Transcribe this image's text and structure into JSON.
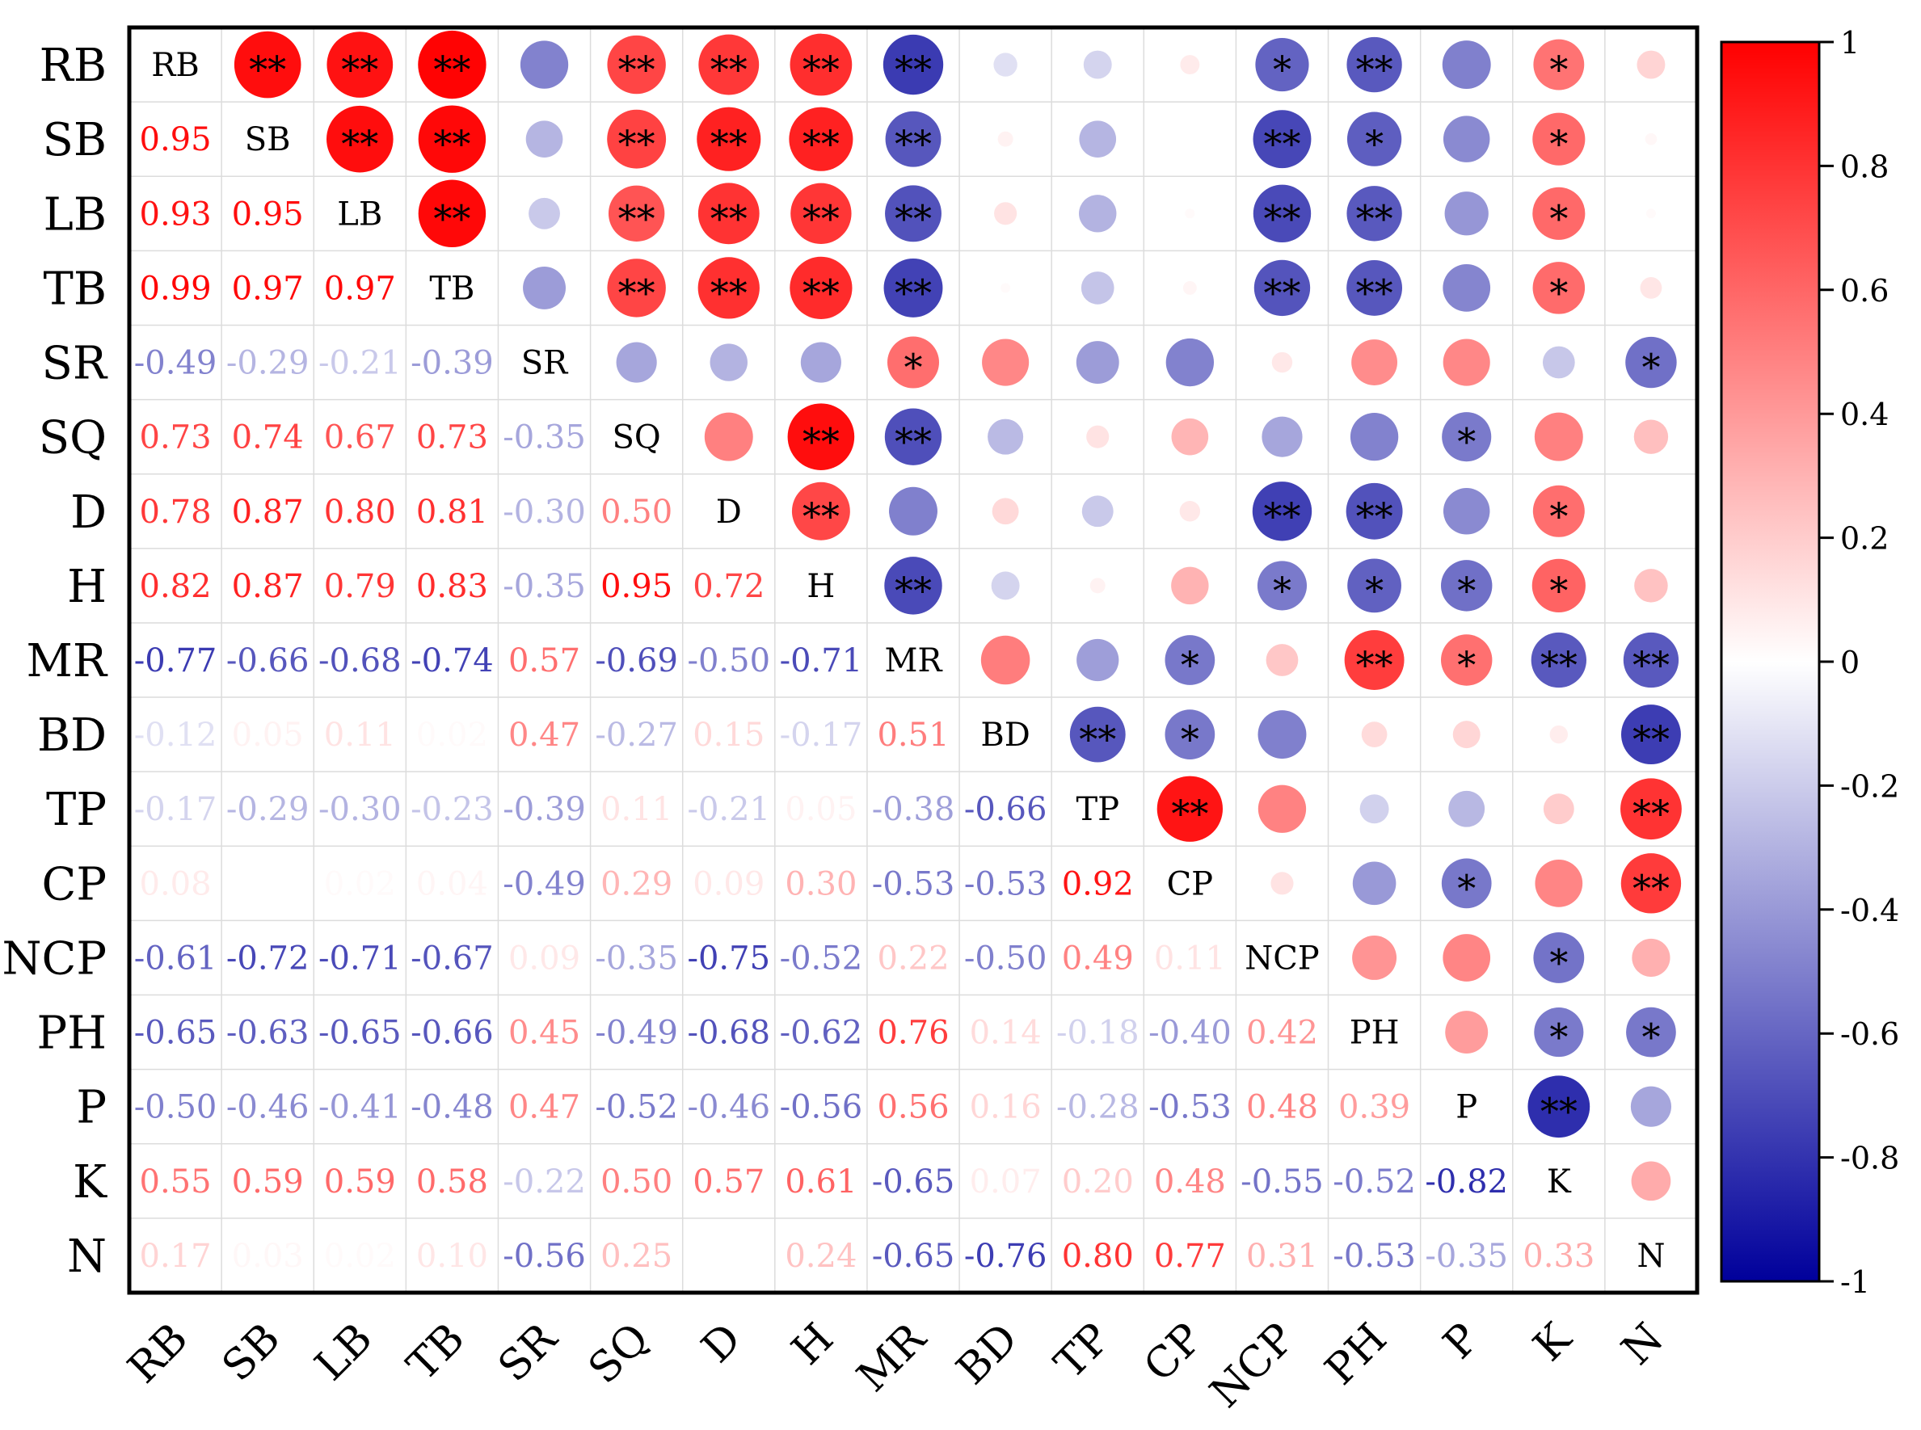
{
  "chart_data": {
    "type": "heatmap",
    "title": "",
    "xlabel": "",
    "ylabel": "",
    "variables": [
      "RB",
      "SB",
      "LB",
      "TB",
      "SR",
      "SQ",
      "D",
      "H",
      "MR",
      "BD",
      "TP",
      "CP",
      "NCP",
      "PH",
      "P",
      "K",
      "N"
    ],
    "lower_labels": [
      [],
      [
        "0.95"
      ],
      [
        "0.93",
        "0.95"
      ],
      [
        "0.99",
        "0.97",
        "0.97"
      ],
      [
        "-0.49",
        "-0.29",
        "-0.21",
        "-0.39"
      ],
      [
        "0.73",
        "0.74",
        "0.67",
        "0.73",
        "-0.35"
      ],
      [
        "0.78",
        "0.87",
        "0.80",
        "0.81",
        "-0.30",
        "0.50"
      ],
      [
        "0.82",
        "0.87",
        "0.79",
        "0.83",
        "-0.35",
        "0.95",
        "0.72"
      ],
      [
        "-0.77",
        "-0.66",
        "-0.68",
        "-0.74",
        "0.57",
        "-0.69",
        "-0.50",
        "-0.71"
      ],
      [
        "-0.12",
        "0.05",
        "0.11",
        "0.02",
        "0.47",
        "-0.27",
        "0.15",
        "-0.17",
        "0.51"
      ],
      [
        "-0.17",
        "-0.29",
        "-0.30",
        "-0.23",
        "-0.39",
        "0.11",
        "-0.21",
        "0.05",
        "-0.38",
        "-0.66"
      ],
      [
        "0.08",
        "0.00",
        "0.02",
        "0.04",
        "-0.49",
        "0.29",
        "0.09",
        "0.30",
        "-0.53",
        "-0.53",
        "0.92"
      ],
      [
        "-0.61",
        "-0.72",
        "-0.71",
        "-0.67",
        "0.09",
        "-0.35",
        "-0.75",
        "-0.52",
        "0.22",
        "-0.50",
        "0.49",
        "0.11"
      ],
      [
        "-0.65",
        "-0.63",
        "-0.65",
        "-0.66",
        "0.45",
        "-0.49",
        "-0.68",
        "-0.62",
        "0.76",
        "0.14",
        "-0.18",
        "-0.40",
        "0.42"
      ],
      [
        "-0.50",
        "-0.46",
        "-0.41",
        "-0.48",
        "0.47",
        "-0.52",
        "-0.46",
        "-0.56",
        "0.56",
        "0.16",
        "-0.28",
        "-0.53",
        "0.48",
        "0.39"
      ],
      [
        "0.55",
        "0.59",
        "0.59",
        "0.58",
        "-0.22",
        "0.50",
        "0.57",
        "0.61",
        "-0.65",
        "0.07",
        "0.20",
        "0.48",
        "-0.55",
        "-0.52",
        "-0.82"
      ],
      [
        "0.17",
        "0.03",
        "0.02",
        "0.10",
        "-0.56",
        "0.25",
        "0.00",
        "0.24",
        "-0.65",
        "-0.76",
        "0.80",
        "0.77",
        "0.31",
        "-0.53",
        "-0.35",
        "0.33"
      ]
    ],
    "significance": [
      [
        "",
        "**",
        "**",
        "**",
        "",
        "**",
        "**",
        "**",
        "**",
        "",
        "",
        "",
        "*",
        "**",
        "",
        "*",
        ""
      ],
      [
        "",
        "",
        "**",
        "**",
        "",
        "**",
        "**",
        "**",
        "**",
        "",
        "",
        "",
        "**",
        "*",
        "",
        "*",
        ""
      ],
      [
        "",
        "",
        "",
        "**",
        "",
        "**",
        "**",
        "**",
        "**",
        "",
        "",
        "",
        "**",
        "**",
        "",
        "*",
        ""
      ],
      [
        "",
        "",
        "",
        "",
        "",
        "**",
        "**",
        "**",
        "**",
        "",
        "",
        "",
        "**",
        "**",
        "",
        "*",
        ""
      ],
      [
        "",
        "",
        "",
        "",
        "",
        "",
        "",
        "",
        "*",
        "",
        "",
        "",
        "",
        "",
        "",
        "",
        "*"
      ],
      [
        "",
        "",
        "",
        "",
        "",
        "",
        "",
        "**",
        "**",
        "",
        "",
        "",
        "",
        "",
        "*",
        "",
        ""
      ],
      [
        "",
        "",
        "",
        "",
        "",
        "",
        "",
        "**",
        "",
        "",
        "",
        "",
        "**",
        "**",
        "",
        "*",
        ""
      ],
      [
        "",
        "",
        "",
        "",
        "",
        "",
        "",
        "",
        "**",
        "",
        "",
        "",
        "*",
        "*",
        "*",
        "*",
        ""
      ],
      [
        "",
        "",
        "",
        "",
        "",
        "",
        "",
        "",
        "",
        "",
        "",
        "*",
        "",
        "**",
        "*",
        "**",
        "**"
      ],
      [
        "",
        "",
        "",
        "",
        "",
        "",
        "",
        "",
        "",
        "",
        "**",
        "*",
        "",
        "",
        "",
        "",
        "**"
      ],
      [
        "",
        "",
        "",
        "",
        "",
        "",
        "",
        "",
        "",
        "",
        "",
        "**",
        "",
        "",
        "",
        "",
        "**"
      ],
      [
        "",
        "",
        "",
        "",
        "",
        "",
        "",
        "",
        "",
        "",
        "",
        "",
        "",
        "",
        "*",
        "",
        "**"
      ],
      [
        "",
        "",
        "",
        "",
        "",
        "",
        "",
        "",
        "",
        "",
        "",
        "",
        "",
        "",
        "",
        "*",
        ""
      ],
      [
        "",
        "",
        "",
        "",
        "",
        "",
        "",
        "",
        "",
        "",
        "",
        "",
        "",
        "",
        "",
        "*",
        "*"
      ],
      [
        "",
        "",
        "",
        "",
        "",
        "",
        "",
        "",
        "",
        "",
        "",
        "",
        "",
        "",
        "",
        "**",
        ""
      ],
      [
        "",
        "",
        "",
        "",
        "",
        "",
        "",
        "",
        "",
        "",
        "",
        "",
        "",
        "",
        "",
        "",
        ""
      ],
      [
        "",
        "",
        "",
        "",
        "",
        "",
        "",
        "",
        "",
        "",
        "",
        "",
        "",
        "",
        "",
        "",
        ""
      ]
    ],
    "colorbar": {
      "min": -1,
      "max": 1,
      "tick_labels": [
        "1",
        "0.8",
        "0.6",
        "0.4",
        "0.2",
        "0",
        "-0.2",
        "-0.4",
        "-0.6",
        "-0.8",
        "-1"
      ],
      "colors": {
        "negative": "#00009b",
        "zero": "#ffffff",
        "positive": "#ff0000"
      }
    }
  }
}
